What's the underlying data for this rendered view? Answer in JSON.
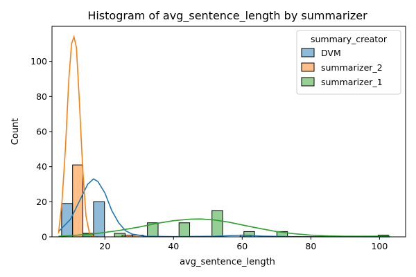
{
  "chart_data": {
    "type": "bar",
    "title": "Histogram of avg_sentence_length by summarizer",
    "xlabel": "avg_sentence_length",
    "ylabel": "Count",
    "xlim": [
      4.6,
      107.6
    ],
    "ylim": [
      0,
      120
    ],
    "x_ticks": [
      20,
      40,
      60,
      80,
      100
    ],
    "y_ticks": [
      0,
      20,
      40,
      60,
      80,
      100
    ],
    "grid": false,
    "legend_title": "summary_creator",
    "legend_position": "top-right",
    "series": [
      {
        "name": "DVM",
        "color": "#1f77b4",
        "bins": [
          {
            "x0": 7.4,
            "x1": 10.6,
            "value": 19
          },
          {
            "x0": 13.6,
            "x1": 16.7,
            "value": 2
          },
          {
            "x0": 16.7,
            "x1": 19.9,
            "value": 20
          },
          {
            "x0": 59.4,
            "x1": 62.6,
            "value": 1
          }
        ],
        "kde": [
          [
            6.5,
            3
          ],
          [
            10,
            10
          ],
          [
            13,
            22
          ],
          [
            15,
            30
          ],
          [
            16.7,
            33
          ],
          [
            18,
            31.5
          ],
          [
            20,
            25
          ],
          [
            22,
            15
          ],
          [
            24,
            8
          ],
          [
            26,
            3.5
          ],
          [
            28,
            1.5
          ],
          [
            32,
            0.3
          ],
          [
            40,
            0.1
          ],
          [
            52,
            0.3
          ],
          [
            60,
            1
          ],
          [
            66,
            0.4
          ],
          [
            75,
            0.1
          ],
          [
            103,
            0
          ]
        ]
      },
      {
        "name": "summarizer_2",
        "color": "#ff7f0e",
        "bins": [
          {
            "x0": 10.6,
            "x1": 13.6,
            "value": 41
          },
          {
            "x0": 25.0,
            "x1": 28.0,
            "value": 1
          },
          {
            "x0": 28.0,
            "x1": 31.2,
            "value": 1
          }
        ],
        "kde": [
          [
            6.5,
            2
          ],
          [
            7.5,
            20
          ],
          [
            8.5,
            50
          ],
          [
            9.5,
            90
          ],
          [
            10.3,
            110
          ],
          [
            11,
            114
          ],
          [
            11.7,
            108
          ],
          [
            12.5,
            80
          ],
          [
            13.5,
            40
          ],
          [
            14.5,
            12
          ],
          [
            15.5,
            2
          ],
          [
            16.5,
            0.3
          ],
          [
            18,
            0
          ]
        ]
      },
      {
        "name": "summarizer_1",
        "color": "#2ca02c",
        "bins": [
          {
            "x0": 13.6,
            "x1": 16.7,
            "value": 2
          },
          {
            "x0": 22.8,
            "x1": 25.9,
            "value": 2
          },
          {
            "x0": 32.4,
            "x1": 35.5,
            "value": 8
          },
          {
            "x0": 41.6,
            "x1": 44.7,
            "value": 8
          },
          {
            "x0": 51.2,
            "x1": 54.3,
            "value": 15
          },
          {
            "x0": 60.5,
            "x1": 63.6,
            "value": 3
          },
          {
            "x0": 70.1,
            "x1": 73.2,
            "value": 3
          },
          {
            "x0": 99.6,
            "x1": 102.6,
            "value": 1
          }
        ],
        "kde": [
          [
            6.5,
            0.3
          ],
          [
            12,
            1
          ],
          [
            18,
            2
          ],
          [
            24,
            3.6
          ],
          [
            30,
            5.6
          ],
          [
            35,
            7.6
          ],
          [
            40,
            9.2
          ],
          [
            45,
            10.1
          ],
          [
            48,
            10.2
          ],
          [
            52,
            9.6
          ],
          [
            56,
            8.4
          ],
          [
            60,
            6.8
          ],
          [
            65,
            4.8
          ],
          [
            70,
            3
          ],
          [
            75,
            1.8
          ],
          [
            80,
            1
          ],
          [
            85,
            0.5
          ],
          [
            90,
            0.3
          ],
          [
            95,
            0.3
          ],
          [
            100,
            0.4
          ],
          [
            103,
            0.4
          ]
        ]
      }
    ]
  }
}
